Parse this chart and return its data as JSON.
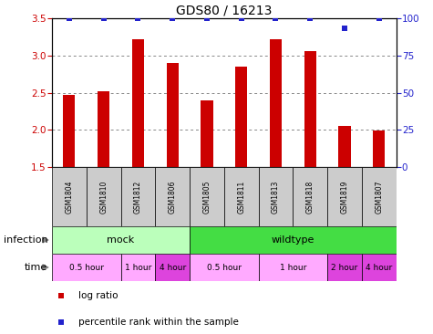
{
  "title": "GDS80 / 16213",
  "samples": [
    "GSM1804",
    "GSM1810",
    "GSM1812",
    "GSM1806",
    "GSM1805",
    "GSM1811",
    "GSM1813",
    "GSM1818",
    "GSM1819",
    "GSM1807"
  ],
  "log_ratio": [
    2.47,
    2.52,
    3.22,
    2.9,
    2.4,
    2.85,
    3.22,
    3.06,
    2.05,
    1.99
  ],
  "percentile": [
    100,
    100,
    100,
    100,
    100,
    100,
    100,
    100,
    93,
    100
  ],
  "ylim": [
    1.5,
    3.5
  ],
  "yticks": [
    1.5,
    2.0,
    2.5,
    3.0,
    3.5
  ],
  "right_yticks": [
    0,
    25,
    50,
    75,
    100
  ],
  "right_ylim": [
    0,
    100
  ],
  "bar_color": "#cc0000",
  "dot_color": "#2222cc",
  "infection_groups": [
    {
      "label": "mock",
      "start": 0,
      "end": 4,
      "color": "#bbffbb"
    },
    {
      "label": "wildtype",
      "start": 4,
      "end": 10,
      "color": "#44dd44"
    }
  ],
  "time_groups": [
    {
      "label": "0.5 hour",
      "start": 0,
      "end": 2,
      "color": "#ffaaff"
    },
    {
      "label": "1 hour",
      "start": 2,
      "end": 3,
      "color": "#ffaaff"
    },
    {
      "label": "4 hour",
      "start": 3,
      "end": 4,
      "color": "#dd44dd"
    },
    {
      "label": "0.5 hour",
      "start": 4,
      "end": 6,
      "color": "#ffaaff"
    },
    {
      "label": "1 hour",
      "start": 6,
      "end": 8,
      "color": "#ffaaff"
    },
    {
      "label": "2 hour",
      "start": 8,
      "end": 9,
      "color": "#dd44dd"
    },
    {
      "label": "4 hour",
      "start": 9,
      "end": 10,
      "color": "#dd44dd"
    }
  ],
  "legend_items": [
    {
      "label": "log ratio",
      "color": "#cc0000"
    },
    {
      "label": "percentile rank within the sample",
      "color": "#2222cc"
    }
  ],
  "bar_width": 0.35
}
